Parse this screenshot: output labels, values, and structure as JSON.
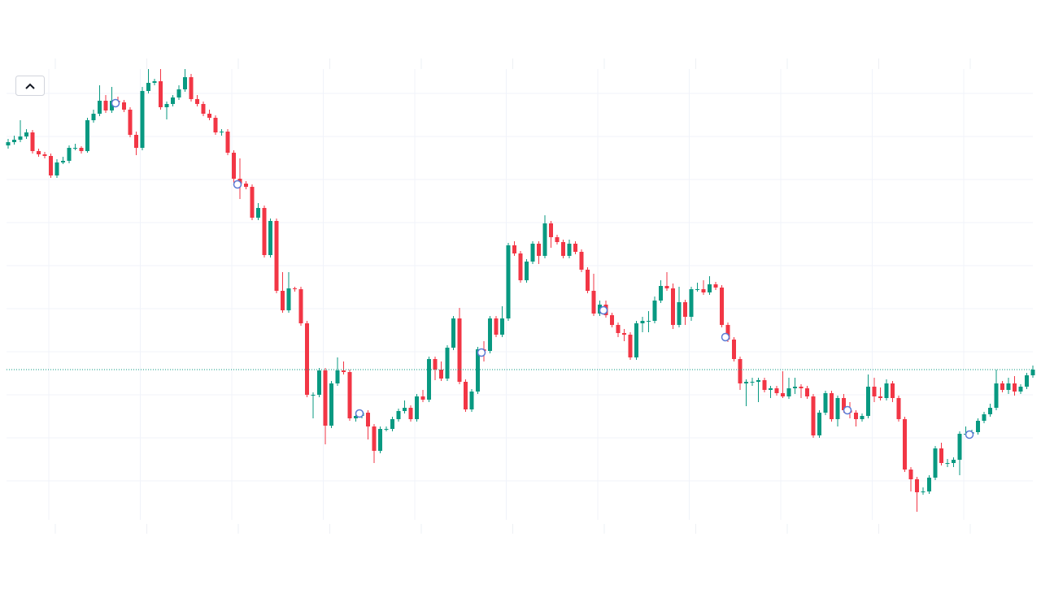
{
  "chart_data": {
    "type": "candlestick",
    "candles": [
      [
        466,
        474,
        462,
        470
      ],
      [
        470,
        478,
        467,
        473
      ],
      [
        473,
        497,
        470,
        477
      ],
      [
        477,
        486,
        474,
        482
      ],
      [
        482,
        485,
        456,
        459
      ],
      [
        459,
        462,
        452,
        455
      ],
      [
        455,
        458,
        450,
        453
      ],
      [
        453,
        456,
        426,
        429
      ],
      [
        429,
        449,
        426,
        445
      ],
      [
        445,
        452,
        443,
        447
      ],
      [
        447,
        466,
        444,
        463
      ],
      [
        463,
        468,
        460,
        463
      ],
      [
        463,
        465,
        456,
        459
      ],
      [
        459,
        500,
        457,
        497
      ],
      [
        497,
        510,
        494,
        505
      ],
      [
        505,
        540,
        502,
        521
      ],
      [
        521,
        528,
        506,
        509
      ],
      [
        509,
        538,
        506,
        521
      ],
      [
        521,
        526,
        516,
        519
      ],
      [
        519,
        522,
        507,
        510
      ],
      [
        510,
        513,
        476,
        479
      ],
      [
        479,
        483,
        454,
        463
      ],
      [
        463,
        538,
        460,
        533
      ],
      [
        533,
        560,
        530,
        543
      ],
      [
        543,
        548,
        540,
        545
      ],
      [
        545,
        560,
        510,
        513
      ],
      [
        513,
        520,
        498,
        517
      ],
      [
        517,
        528,
        514,
        525
      ],
      [
        525,
        540,
        522,
        535
      ],
      [
        535,
        560,
        532,
        550
      ],
      [
        550,
        554,
        520,
        523
      ],
      [
        523,
        528,
        514,
        517
      ],
      [
        517,
        520,
        502,
        505
      ],
      [
        505,
        510,
        497,
        500
      ],
      [
        500,
        503,
        479,
        482
      ],
      [
        482,
        486,
        478,
        483
      ],
      [
        483,
        486,
        454,
        457
      ],
      [
        457,
        460,
        420,
        425
      ],
      [
        425,
        450,
        400,
        419
      ],
      [
        419,
        422,
        412,
        415
      ],
      [
        415,
        418,
        374,
        377
      ],
      [
        377,
        395,
        374,
        389
      ],
      [
        389,
        392,
        328,
        331
      ],
      [
        331,
        376,
        328,
        373
      ],
      [
        373,
        376,
        284,
        287
      ],
      [
        287,
        310,
        260,
        263
      ],
      [
        263,
        310,
        260,
        290
      ],
      [
        290,
        292,
        286,
        289
      ],
      [
        289,
        292,
        244,
        247
      ],
      [
        247,
        250,
        156,
        159
      ],
      [
        159,
        162,
        130,
        159
      ],
      [
        159,
        192,
        156,
        189
      ],
      [
        189,
        192,
        98,
        121
      ],
      [
        121,
        176,
        118,
        173
      ],
      [
        173,
        205,
        170,
        189
      ],
      [
        189,
        200,
        184,
        187
      ],
      [
        187,
        190,
        127,
        130
      ],
      [
        130,
        136,
        126,
        133
      ],
      [
        133,
        140,
        130,
        137
      ],
      [
        137,
        140,
        104,
        120
      ],
      [
        120,
        123,
        75,
        90
      ],
      [
        90,
        120,
        87,
        117
      ],
      [
        117,
        120,
        114,
        117
      ],
      [
        117,
        132,
        114,
        129
      ],
      [
        129,
        142,
        126,
        139
      ],
      [
        139,
        152,
        136,
        143
      ],
      [
        143,
        146,
        126,
        129
      ],
      [
        129,
        160,
        126,
        157
      ],
      [
        157,
        165,
        150,
        153
      ],
      [
        153,
        206,
        150,
        203
      ],
      [
        203,
        206,
        177,
        190
      ],
      [
        190,
        200,
        176,
        179
      ],
      [
        179,
        220,
        176,
        217
      ],
      [
        217,
        256,
        214,
        253
      ],
      [
        253,
        266,
        172,
        175
      ],
      [
        175,
        178,
        138,
        141
      ],
      [
        141,
        166,
        138,
        163
      ],
      [
        163,
        218,
        160,
        215
      ],
      [
        215,
        225,
        200,
        213
      ],
      [
        213,
        256,
        210,
        253
      ],
      [
        253,
        256,
        230,
        233
      ],
      [
        233,
        268,
        230,
        253
      ],
      [
        253,
        346,
        250,
        343
      ],
      [
        343,
        348,
        330,
        333
      ],
      [
        333,
        336,
        297,
        300
      ],
      [
        300,
        326,
        297,
        323
      ],
      [
        323,
        348,
        320,
        345
      ],
      [
        345,
        348,
        320,
        330
      ],
      [
        330,
        380,
        327,
        370
      ],
      [
        370,
        373,
        340,
        353
      ],
      [
        353,
        356,
        344,
        347
      ],
      [
        347,
        350,
        327,
        330
      ],
      [
        330,
        350,
        327,
        345
      ],
      [
        345,
        348,
        332,
        335
      ],
      [
        335,
        338,
        310,
        313
      ],
      [
        313,
        316,
        284,
        287
      ],
      [
        287,
        308,
        256,
        259
      ],
      [
        259,
        275,
        256,
        270
      ],
      [
        270,
        275,
        254,
        257
      ],
      [
        257,
        260,
        242,
        245
      ],
      [
        245,
        248,
        230,
        235
      ],
      [
        235,
        240,
        225,
        233
      ],
      [
        233,
        236,
        202,
        205
      ],
      [
        205,
        250,
        202,
        247
      ],
      [
        247,
        255,
        236,
        250
      ],
      [
        250,
        262,
        236,
        250
      ],
      [
        250,
        280,
        247,
        275
      ],
      [
        275,
        300,
        272,
        293
      ],
      [
        293,
        310,
        287,
        290
      ],
      [
        290,
        296,
        240,
        245
      ],
      [
        245,
        292,
        242,
        273
      ],
      [
        273,
        276,
        245,
        255
      ],
      [
        255,
        292,
        250,
        289
      ],
      [
        289,
        297,
        286,
        289
      ],
      [
        289,
        300,
        282,
        285
      ],
      [
        285,
        305,
        282,
        295
      ],
      [
        295,
        298,
        288,
        291
      ],
      [
        291,
        294,
        242,
        245
      ],
      [
        245,
        248,
        224,
        227
      ],
      [
        227,
        230,
        200,
        203
      ],
      [
        203,
        206,
        165,
        173
      ],
      [
        173,
        178,
        145,
        175
      ],
      [
        175,
        180,
        170,
        175
      ],
      [
        175,
        180,
        150,
        177
      ],
      [
        177,
        180,
        162,
        165
      ],
      [
        165,
        170,
        155,
        167
      ],
      [
        167,
        170,
        158,
        161
      ],
      [
        161,
        188,
        155,
        157
      ],
      [
        157,
        180,
        154,
        167
      ],
      [
        167,
        180,
        160,
        169
      ],
      [
        169,
        172,
        155,
        167
      ],
      [
        167,
        170,
        154,
        157
      ],
      [
        157,
        160,
        106,
        109
      ],
      [
        109,
        140,
        106,
        137
      ],
      [
        137,
        164,
        134,
        161
      ],
      [
        161,
        164,
        126,
        129
      ],
      [
        129,
        158,
        120,
        155
      ],
      [
        155,
        160,
        137,
        140
      ],
      [
        140,
        150,
        130,
        137
      ],
      [
        137,
        140,
        120,
        129
      ],
      [
        129,
        136,
        126,
        133
      ],
      [
        133,
        184,
        130,
        169
      ],
      [
        169,
        180,
        150,
        157
      ],
      [
        157,
        168,
        152,
        155
      ],
      [
        155,
        178,
        152,
        173
      ],
      [
        173,
        176,
        150,
        155
      ],
      [
        155,
        158,
        126,
        129
      ],
      [
        129,
        132,
        64,
        67
      ],
      [
        67,
        70,
        40,
        55
      ],
      [
        55,
        58,
        15,
        39
      ],
      [
        39,
        45,
        36,
        40
      ],
      [
        40,
        60,
        37,
        57
      ],
      [
        57,
        96,
        54,
        93
      ],
      [
        93,
        100,
        72,
        75
      ],
      [
        75,
        80,
        70,
        75
      ],
      [
        75,
        82,
        70,
        79
      ],
      [
        79,
        114,
        60,
        111
      ],
      [
        111,
        120,
        108,
        111
      ],
      [
        111,
        116,
        108,
        113
      ],
      [
        113,
        130,
        110,
        127
      ],
      [
        127,
        138,
        124,
        135
      ],
      [
        135,
        148,
        132,
        143
      ],
      [
        143,
        190,
        140,
        173
      ],
      [
        173,
        176,
        162,
        165
      ],
      [
        165,
        180,
        160,
        173
      ],
      [
        173,
        182,
        158,
        163
      ],
      [
        163,
        172,
        160,
        169
      ],
      [
        169,
        186,
        166,
        183
      ],
      [
        183,
        195,
        180,
        190
      ]
    ],
    "up_color": "#089981",
    "down_color": "#f23645",
    "ylim": [
      5,
      560
    ],
    "yticks": [
      53,
      106,
      159,
      212,
      265,
      318,
      371,
      424,
      477,
      530
    ],
    "grid": true
  }
}
